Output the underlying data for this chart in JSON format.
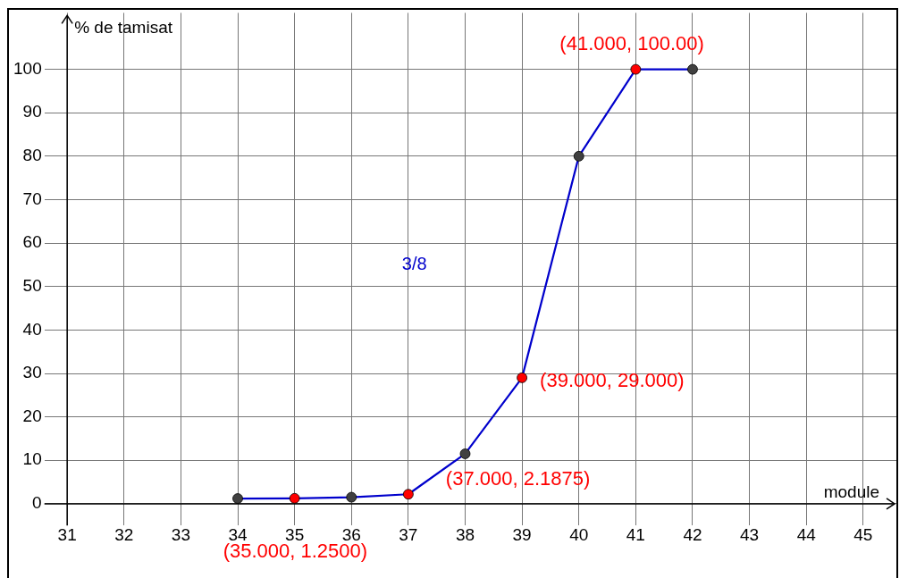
{
  "chart_data": {
    "type": "line",
    "xlabel": "module",
    "ylabel": "% de tamisat",
    "x": [
      34,
      35,
      36,
      37,
      38,
      39,
      40,
      41,
      42
    ],
    "series": [
      {
        "name": "3/8",
        "color": "#0000cc",
        "colors": [
          "#404040",
          "#ff0000",
          "#404040",
          "#ff0000",
          "#404040",
          "#ff0000",
          "#404040",
          "#ff0000",
          "#404040"
        ],
        "values": [
          1.2,
          1.25,
          1.5,
          2.1875,
          11.5,
          29,
          80,
          100,
          100
        ]
      }
    ],
    "xlim": [
      30.6,
      45.6
    ],
    "xticks": [
      31,
      32,
      33,
      34,
      35,
      36,
      37,
      38,
      39,
      40,
      41,
      42,
      43,
      44,
      45
    ],
    "ylim": [
      -5,
      113
    ],
    "yticks": [
      0,
      10,
      20,
      30,
      40,
      50,
      60,
      70,
      80,
      90,
      100
    ],
    "annotations": [
      {
        "text": "(35.000, 1.2500)",
        "x": 35,
        "y": 1.25
      },
      {
        "text": "(37.000, 2.1875)",
        "x": 37,
        "y": 2.1875
      },
      {
        "text": "(39.000, 29.000)",
        "x": 39,
        "y": 29
      },
      {
        "text": "(41.000, 100.00)",
        "x": 41,
        "y": 100
      }
    ],
    "grid": true,
    "legend": false,
    "marker": "circle",
    "line_style": "solid"
  }
}
